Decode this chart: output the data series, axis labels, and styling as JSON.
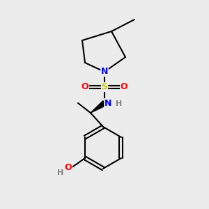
{
  "background_color": "#ececec",
  "bond_color": "#000000",
  "bond_width": 1.5,
  "atom_colors": {
    "N": "#0000ff",
    "S": "#cccc00",
    "O": "#ff0000",
    "C": "#000000",
    "H_gray": "#808080"
  },
  "font_size_atom": 9
}
